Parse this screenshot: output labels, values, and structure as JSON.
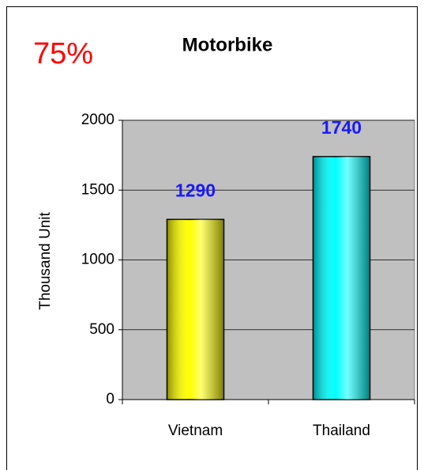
{
  "chart_data": {
    "type": "bar",
    "title": "Motorbike",
    "annotation": "75%",
    "ylabel": "Thousand Unit",
    "categories": [
      "Vietnam",
      "Thailand"
    ],
    "values": [
      1290,
      1740
    ],
    "colors": [
      "#ffff00",
      "#00ffff"
    ],
    "label_color": "#1a1aff",
    "background": "#c0c0c0",
    "ylim": [
      0,
      2000
    ],
    "yticks": [
      0,
      500,
      1000,
      1500,
      2000
    ],
    "grid": true
  }
}
